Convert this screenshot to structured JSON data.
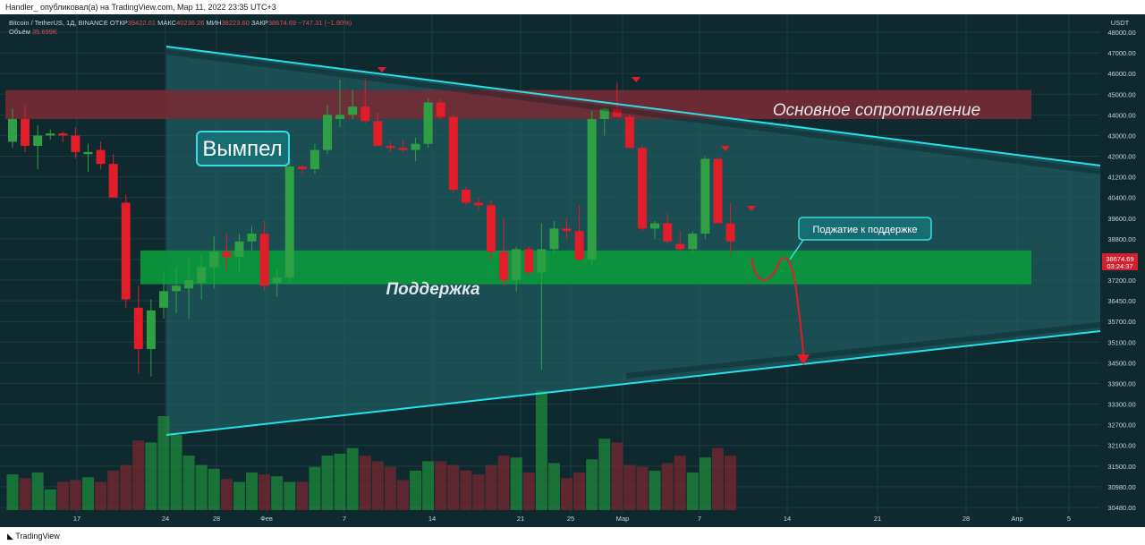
{
  "header": {
    "publisher_line": "Handler_ опубликовал(а) на TradingView.com, Мар 11, 2022 23:35 UTC+3"
  },
  "legend": {
    "symbol": "Bitcoin / TetherUS, 1Д, BINANCE",
    "open_label": "ОТКР",
    "open_value": "39422.01",
    "high_label": "МАКС",
    "high_value": "40236.26",
    "low_label": "МИН",
    "low_value": "38223.60",
    "close_label": "ЗАКР",
    "close_value": "38674.69",
    "change": "−747.31 (−1.90%)",
    "volume_label": "Объём",
    "volume_value": "35.699K"
  },
  "footer": {
    "brand": "TradingView"
  },
  "colors": {
    "background": "#0f2a2f",
    "up": "#2ea043",
    "down": "#e11d2a",
    "trendline": "#27e0ea",
    "support_zone": "#0a9a3c",
    "resistance_zone": "#7b2a35",
    "pennant_fill": "#1f5e63",
    "price_badge": "#d31f2d"
  },
  "chart_data": {
    "type": "candlestick",
    "title": "",
    "currency_label": "USDT",
    "y_axis_ticks": [
      "48000.00",
      "47000.00",
      "46000.00",
      "45000.00",
      "44000.00",
      "43000.00",
      "42000.00",
      "41200.00",
      "40400.00",
      "39600.00",
      "38800.00",
      "38000.00",
      "37200.00",
      "36450.00",
      "35700.00",
      "35100.00",
      "34500.00",
      "33900.00",
      "33300.00",
      "32700.00",
      "32100.00",
      "31500.00",
      "30980.00",
      "30480.00"
    ],
    "x_axis_ticks": [
      "17",
      "24",
      "28",
      "Фев",
      "7",
      "14",
      "21",
      "25",
      "Мар",
      "7",
      "14",
      "21",
      "28",
      "Апр",
      "5"
    ],
    "current_price": "38674.69",
    "countdown": "03:24:37",
    "candles": [
      {
        "o": 42700,
        "h": 44300,
        "l": 42400,
        "c": 43800
      },
      {
        "o": 43800,
        "h": 44500,
        "l": 42200,
        "c": 42500
      },
      {
        "o": 42500,
        "h": 43500,
        "l": 41500,
        "c": 43000
      },
      {
        "o": 43000,
        "h": 43300,
        "l": 42800,
        "c": 43100
      },
      {
        "o": 43100,
        "h": 43200,
        "l": 42700,
        "c": 43000
      },
      {
        "o": 43000,
        "h": 43400,
        "l": 41900,
        "c": 42200
      },
      {
        "o": 42100,
        "h": 42600,
        "l": 41400,
        "c": 42200
      },
      {
        "o": 42300,
        "h": 42700,
        "l": 41500,
        "c": 41700
      },
      {
        "o": 41700,
        "h": 42100,
        "l": 40400,
        "c": 40400
      },
      {
        "o": 40200,
        "h": 40500,
        "l": 36200,
        "c": 36500
      },
      {
        "o": 36200,
        "h": 37000,
        "l": 34200,
        "c": 34900
      },
      {
        "o": 34900,
        "h": 36500,
        "l": 34100,
        "c": 36100
      },
      {
        "o": 36200,
        "h": 37500,
        "l": 35800,
        "c": 36800
      },
      {
        "o": 36800,
        "h": 37700,
        "l": 36000,
        "c": 37000
      },
      {
        "o": 36900,
        "h": 38100,
        "l": 35800,
        "c": 37200
      },
      {
        "o": 37100,
        "h": 38200,
        "l": 36500,
        "c": 37700
      },
      {
        "o": 37700,
        "h": 38900,
        "l": 36900,
        "c": 38300
      },
      {
        "o": 38300,
        "h": 39000,
        "l": 37600,
        "c": 38100
      },
      {
        "o": 38100,
        "h": 39000,
        "l": 37500,
        "c": 38700
      },
      {
        "o": 38700,
        "h": 39300,
        "l": 38300,
        "c": 39000
      },
      {
        "o": 39000,
        "h": 39500,
        "l": 36800,
        "c": 37000
      },
      {
        "o": 37100,
        "h": 37600,
        "l": 36600,
        "c": 37300
      },
      {
        "o": 37300,
        "h": 41900,
        "l": 37100,
        "c": 41600
      },
      {
        "o": 41600,
        "h": 41700,
        "l": 41300,
        "c": 41500
      },
      {
        "o": 41500,
        "h": 42600,
        "l": 41300,
        "c": 42300
      },
      {
        "o": 42300,
        "h": 44500,
        "l": 42100,
        "c": 44000
      },
      {
        "o": 43800,
        "h": 45700,
        "l": 43400,
        "c": 44000
      },
      {
        "o": 44000,
        "h": 45200,
        "l": 43800,
        "c": 44400
      },
      {
        "o": 44400,
        "h": 45800,
        "l": 43600,
        "c": 43700
      },
      {
        "o": 43700,
        "h": 44100,
        "l": 42500,
        "c": 42500
      },
      {
        "o": 42500,
        "h": 42700,
        "l": 42200,
        "c": 42400
      },
      {
        "o": 42400,
        "h": 42800,
        "l": 42200,
        "c": 42300
      },
      {
        "o": 42300,
        "h": 42900,
        "l": 41800,
        "c": 42600
      },
      {
        "o": 42600,
        "h": 44800,
        "l": 42400,
        "c": 44600
      },
      {
        "o": 44600,
        "h": 44800,
        "l": 43800,
        "c": 43900
      },
      {
        "o": 43900,
        "h": 44000,
        "l": 40600,
        "c": 40700
      },
      {
        "o": 40700,
        "h": 40800,
        "l": 40100,
        "c": 40200
      },
      {
        "o": 40200,
        "h": 40400,
        "l": 39900,
        "c": 40100
      },
      {
        "o": 40100,
        "h": 40300,
        "l": 38000,
        "c": 38300
      },
      {
        "o": 38300,
        "h": 39600,
        "l": 37000,
        "c": 37200
      },
      {
        "o": 37200,
        "h": 38500,
        "l": 36800,
        "c": 38400
      },
      {
        "o": 38400,
        "h": 38500,
        "l": 37400,
        "c": 37500
      },
      {
        "o": 37500,
        "h": 39400,
        "l": 34300,
        "c": 38400
      },
      {
        "o": 38400,
        "h": 39500,
        "l": 38200,
        "c": 39200
      },
      {
        "o": 39200,
        "h": 39600,
        "l": 38800,
        "c": 39100
      },
      {
        "o": 39100,
        "h": 40100,
        "l": 37900,
        "c": 38000
      },
      {
        "o": 38000,
        "h": 44200,
        "l": 37800,
        "c": 43800
      },
      {
        "o": 43800,
        "h": 44400,
        "l": 43000,
        "c": 44300
      },
      {
        "o": 44300,
        "h": 45600,
        "l": 43900,
        "c": 43900
      },
      {
        "o": 43900,
        "h": 44100,
        "l": 42400,
        "c": 42400
      },
      {
        "o": 42400,
        "h": 42500,
        "l": 39100,
        "c": 39200
      },
      {
        "o": 39200,
        "h": 39500,
        "l": 38800,
        "c": 39400
      },
      {
        "o": 39400,
        "h": 39800,
        "l": 38600,
        "c": 38700
      },
      {
        "o": 38600,
        "h": 39100,
        "l": 38300,
        "c": 38400
      },
      {
        "o": 38400,
        "h": 39100,
        "l": 38200,
        "c": 39000
      },
      {
        "o": 39000,
        "h": 42000,
        "l": 38800,
        "c": 41900
      },
      {
        "o": 41900,
        "h": 41900,
        "l": 39400,
        "c": 39400
      },
      {
        "o": 39400,
        "h": 40200,
        "l": 38200,
        "c": 38700
      }
    ],
    "volumes": [
      0.38,
      0.34,
      0.4,
      0.22,
      0.3,
      0.32,
      0.35,
      0.3,
      0.42,
      0.48,
      0.74,
      0.72,
      1.0,
      0.8,
      0.58,
      0.48,
      0.44,
      0.33,
      0.3,
      0.4,
      0.38,
      0.36,
      0.3,
      0.3,
      0.46,
      0.58,
      0.6,
      0.66,
      0.58,
      0.52,
      0.46,
      0.32,
      0.42,
      0.52,
      0.52,
      0.48,
      0.42,
      0.38,
      0.48,
      0.58,
      0.56,
      0.4,
      1.27,
      0.5,
      0.34,
      0.4,
      0.54,
      0.76,
      0.72,
      0.48,
      0.46,
      0.42,
      0.5,
      0.58,
      0.4,
      0.56,
      0.66,
      0.58
    ],
    "annotations": {
      "resistance_label": "Основное сопротивление",
      "support_label": "Поддержка",
      "pattern_label": "Вымпел",
      "callout_label": "Поджатие к поддержке"
    }
  }
}
